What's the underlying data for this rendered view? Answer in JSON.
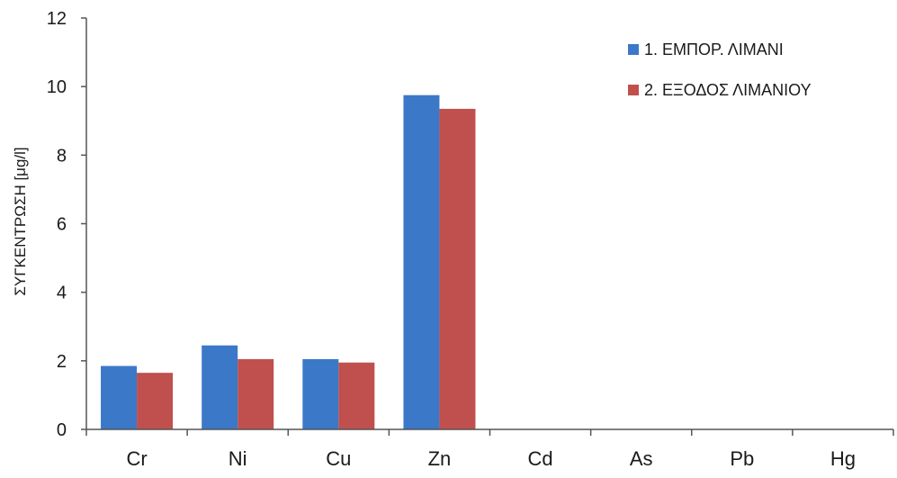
{
  "chart_data": {
    "type": "bar",
    "title": "",
    "xlabel": "",
    "ylabel": "ΣΥΓΚΕΝΤΡΩΣΗ [μg/l]",
    "ylim": [
      0,
      12
    ],
    "yticks": [
      0,
      2,
      4,
      6,
      8,
      10,
      12
    ],
    "grid": false,
    "legend_position": "top-right",
    "categories": [
      "Cr",
      "Ni",
      "Cu",
      "Zn",
      "Cd",
      "As",
      "Pb",
      "Hg"
    ],
    "series": [
      {
        "name": "1. ΕΜΠΟΡ. ΛΙΜΑΝΙ",
        "color": "#3b78c8",
        "values": [
          1.85,
          2.45,
          2.05,
          9.75,
          0,
          0,
          0,
          0
        ]
      },
      {
        "name": "2. ΕΞΟΔΟΣ ΛΙΜΑΝΙΟΥ",
        "color": "#c0504d",
        "values": [
          1.65,
          2.05,
          1.95,
          9.35,
          0,
          0,
          0,
          0
        ]
      }
    ]
  }
}
